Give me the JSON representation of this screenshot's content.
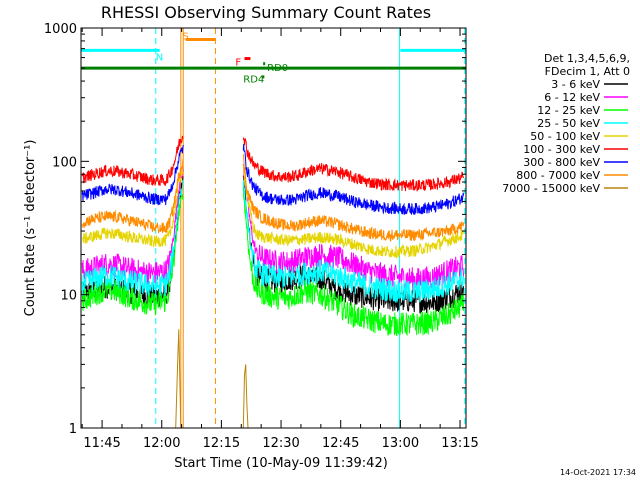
{
  "chart_data": {
    "type": "line",
    "title": "RHESSI Observing Summary Count Rates",
    "xlabel": "Start Time (10-May-09 11:39:42)",
    "ylabel": "Count Rate (s⁻¹ detector⁻¹)",
    "y_scale": "log",
    "ylim": [
      1,
      1000
    ],
    "xlim_minutes": [
      699.7,
      796.5
    ],
    "x_ticks": [
      {
        "t": 705,
        "label": "11:45"
      },
      {
        "t": 720,
        "label": "12:00"
      },
      {
        "t": 735,
        "label": "12:15"
      },
      {
        "t": 750,
        "label": "12:30"
      },
      {
        "t": 765,
        "label": "12:45"
      },
      {
        "t": 780,
        "label": "13:00"
      },
      {
        "t": 795,
        "label": "13:15"
      }
    ],
    "y_ticks": [
      {
        "v": 1,
        "label": "1"
      },
      {
        "v": 10,
        "label": "10"
      },
      {
        "v": 100,
        "label": "100"
      },
      {
        "v": 1000,
        "label": "1000"
      }
    ],
    "legend": {
      "placement": "right",
      "header": [
        "Det 1,3,4,5,6,9,",
        "FDecim 1, Att 0"
      ]
    },
    "series": [
      {
        "name": "3 - 6 keV",
        "color": "#000000",
        "points": [
          [
            700,
            10
          ],
          [
            703,
            11
          ],
          [
            706,
            11.5
          ],
          [
            709,
            11
          ],
          [
            712,
            10.5
          ],
          [
            715,
            10
          ],
          [
            718,
            9.8
          ],
          [
            721,
            10
          ],
          [
            722,
            12
          ],
          [
            723,
            20
          ],
          [
            724.5,
            55
          ],
          [
            725.5,
            75
          ],
          [
            740.5,
            75
          ],
          [
            742,
            30
          ],
          [
            743,
            18
          ],
          [
            744,
            14
          ],
          [
            746,
            13
          ],
          [
            749,
            12.5
          ],
          [
            752,
            13
          ],
          [
            756,
            14
          ],
          [
            760,
            13
          ],
          [
            764,
            11
          ],
          [
            768,
            10
          ],
          [
            772,
            9.5
          ],
          [
            776,
            9
          ],
          [
            780,
            9
          ],
          [
            784,
            9
          ],
          [
            788,
            8.8
          ],
          [
            792,
            9.5
          ],
          [
            796,
            11
          ]
        ]
      },
      {
        "name": "6 - 12 keV",
        "color": "#ff00ff",
        "points": [
          [
            700,
            15
          ],
          [
            703,
            16
          ],
          [
            706,
            17
          ],
          [
            709,
            16.5
          ],
          [
            712,
            15.5
          ],
          [
            715,
            14.8
          ],
          [
            718,
            14.5
          ],
          [
            721,
            15
          ],
          [
            722,
            18
          ],
          [
            723,
            28
          ],
          [
            724.5,
            70
          ],
          [
            725.5,
            90
          ],
          [
            740.5,
            90
          ],
          [
            742,
            40
          ],
          [
            743,
            25
          ],
          [
            744,
            20
          ],
          [
            746,
            18.5
          ],
          [
            749,
            17.5
          ],
          [
            752,
            17.5
          ],
          [
            756,
            19
          ],
          [
            760,
            20
          ],
          [
            764,
            19
          ],
          [
            768,
            17
          ],
          [
            772,
            15
          ],
          [
            776,
            14
          ],
          [
            780,
            13.5
          ],
          [
            784,
            13
          ],
          [
            788,
            13.5
          ],
          [
            792,
            15
          ],
          [
            796,
            16.5
          ]
        ]
      },
      {
        "name": "12 - 25 keV",
        "color": "#00ff00",
        "points": [
          [
            700,
            9
          ],
          [
            703,
            10
          ],
          [
            706,
            11
          ],
          [
            709,
            10.5
          ],
          [
            712,
            9.5
          ],
          [
            715,
            8.8
          ],
          [
            718,
            8.5
          ],
          [
            721,
            9
          ],
          [
            722,
            11
          ],
          [
            723,
            18
          ],
          [
            724.5,
            45
          ],
          [
            725.5,
            60
          ],
          [
            740.5,
            60
          ],
          [
            742,
            20
          ],
          [
            743,
            13
          ],
          [
            744,
            11
          ],
          [
            746,
            10
          ],
          [
            749,
            9.5
          ],
          [
            752,
            9.5
          ],
          [
            756,
            10.5
          ],
          [
            760,
            10
          ],
          [
            764,
            8.5
          ],
          [
            768,
            7
          ],
          [
            772,
            6.5
          ],
          [
            776,
            6
          ],
          [
            780,
            6
          ],
          [
            784,
            6
          ],
          [
            788,
            6.2
          ],
          [
            792,
            7
          ],
          [
            796,
            8.5
          ]
        ]
      },
      {
        "name": "25 - 50 keV",
        "color": "#00ffff",
        "points": [
          [
            700,
            12
          ],
          [
            703,
            13
          ],
          [
            706,
            14
          ],
          [
            709,
            13.5
          ],
          [
            712,
            12.5
          ],
          [
            715,
            12
          ],
          [
            718,
            11.5
          ],
          [
            721,
            12
          ],
          [
            722,
            14
          ],
          [
            723,
            22
          ],
          [
            724.5,
            55
          ],
          [
            725.5,
            70
          ],
          [
            740.5,
            70
          ],
          [
            742,
            28
          ],
          [
            743,
            18
          ],
          [
            744,
            15
          ],
          [
            746,
            14
          ],
          [
            749,
            13.5
          ],
          [
            752,
            13.5
          ],
          [
            756,
            14.5
          ],
          [
            760,
            15
          ],
          [
            764,
            14
          ],
          [
            768,
            12.5
          ],
          [
            772,
            11.5
          ],
          [
            776,
            11
          ],
          [
            780,
            10.5
          ],
          [
            784,
            10.5
          ],
          [
            788,
            11
          ],
          [
            792,
            12
          ],
          [
            796,
            13.5
          ]
        ]
      },
      {
        "name": "50 - 100 keV",
        "color": "#e5d400",
        "points": [
          [
            700,
            26
          ],
          [
            703,
            27.5
          ],
          [
            706,
            29
          ],
          [
            709,
            28.5
          ],
          [
            712,
            27
          ],
          [
            715,
            26
          ],
          [
            718,
            25
          ],
          [
            721,
            25.5
          ],
          [
            722,
            28
          ],
          [
            723,
            38
          ],
          [
            724.5,
            75
          ],
          [
            725.5,
            90
          ],
          [
            740.5,
            90
          ],
          [
            742,
            45
          ],
          [
            743,
            32
          ],
          [
            744,
            28
          ],
          [
            746,
            27
          ],
          [
            749,
            26
          ],
          [
            752,
            25.5
          ],
          [
            756,
            26
          ],
          [
            760,
            27
          ],
          [
            764,
            26
          ],
          [
            768,
            24
          ],
          [
            772,
            22
          ],
          [
            776,
            21
          ],
          [
            780,
            21
          ],
          [
            784,
            21.5
          ],
          [
            788,
            23
          ],
          [
            792,
            25.5
          ],
          [
            796,
            28
          ]
        ]
      },
      {
        "name": "100 - 300 keV",
        "color": "#ff0000",
        "points": [
          [
            700,
            75
          ],
          [
            703,
            80
          ],
          [
            706,
            85
          ],
          [
            709,
            84
          ],
          [
            712,
            80
          ],
          [
            715,
            76
          ],
          [
            718,
            72
          ],
          [
            721,
            72
          ],
          [
            722,
            80
          ],
          [
            723,
            95
          ],
          [
            724.5,
            140
          ],
          [
            725.5,
            160
          ],
          [
            740.5,
            160
          ],
          [
            741.5,
            120
          ],
          [
            743,
            95
          ],
          [
            745,
            85
          ],
          [
            748,
            78
          ],
          [
            751,
            76
          ],
          [
            754,
            78
          ],
          [
            757,
            85
          ],
          [
            760,
            88
          ],
          [
            764,
            84
          ],
          [
            768,
            76
          ],
          [
            772,
            70
          ],
          [
            776,
            67
          ],
          [
            780,
            66
          ],
          [
            784,
            66
          ],
          [
            788,
            67
          ],
          [
            792,
            70
          ],
          [
            796,
            76
          ]
        ]
      },
      {
        "name": "300 - 800 keV",
        "color": "#0000ff",
        "points": [
          [
            700,
            55
          ],
          [
            703,
            58
          ],
          [
            706,
            62
          ],
          [
            709,
            61
          ],
          [
            712,
            58
          ],
          [
            715,
            55
          ],
          [
            718,
            52
          ],
          [
            721,
            52
          ],
          [
            722,
            58
          ],
          [
            723,
            72
          ],
          [
            724.5,
            110
          ],
          [
            725.5,
            130
          ],
          [
            740.5,
            130
          ],
          [
            741.5,
            85
          ],
          [
            743,
            65
          ],
          [
            745,
            56
          ],
          [
            748,
            52
          ],
          [
            751,
            51
          ],
          [
            754,
            52
          ],
          [
            757,
            56
          ],
          [
            760,
            58
          ],
          [
            764,
            55
          ],
          [
            768,
            50
          ],
          [
            772,
            47
          ],
          [
            776,
            45
          ],
          [
            780,
            44
          ],
          [
            784,
            44
          ],
          [
            788,
            45
          ],
          [
            792,
            48
          ],
          [
            796,
            54
          ]
        ]
      },
      {
        "name": "800 - 7000 keV",
        "color": "#ff8c00",
        "points": [
          [
            700,
            35
          ],
          [
            703,
            37
          ],
          [
            706,
            38.5
          ],
          [
            709,
            38
          ],
          [
            712,
            36
          ],
          [
            715,
            34
          ],
          [
            718,
            32
          ],
          [
            721,
            31
          ],
          [
            722,
            35
          ],
          [
            723,
            46
          ],
          [
            724.5,
            85
          ],
          [
            725.5,
            105
          ],
          [
            740.5,
            105
          ],
          [
            741.5,
            60
          ],
          [
            743,
            44
          ],
          [
            745,
            38
          ],
          [
            748,
            35
          ],
          [
            751,
            33
          ],
          [
            754,
            33
          ],
          [
            757,
            35
          ],
          [
            760,
            36
          ],
          [
            764,
            34
          ],
          [
            768,
            31
          ],
          [
            772,
            29
          ],
          [
            776,
            28
          ],
          [
            780,
            28
          ],
          [
            784,
            28
          ],
          [
            788,
            29
          ],
          [
            792,
            30
          ],
          [
            796,
            33
          ]
        ]
      },
      {
        "name": "7000 - 15000 keV",
        "color": "#b8860b",
        "points": [
          [
            723.5,
            1
          ],
          [
            724,
            3
          ],
          [
            724.3,
            5.5
          ],
          [
            724.6,
            2
          ],
          [
            724.8,
            1
          ],
          [
            740.5,
            1
          ],
          [
            740.8,
            2.5
          ],
          [
            741.1,
            3
          ],
          [
            741.4,
            1.5
          ],
          [
            741.7,
            1
          ]
        ]
      }
    ],
    "attenuator_state_line": {
      "color": "#008000",
      "value": 500
    },
    "annotations": [
      {
        "label": "N",
        "color": "#00ffff",
        "t": 718.5,
        "value": 610,
        "from_t": 699.7,
        "to_t": 719.5,
        "line_value": 680
      },
      {
        "label": "S",
        "color": "#ff8c00",
        "t": 725.2,
        "value": 880,
        "from_t": 726,
        "to_t": 733.5,
        "line_value": 820
      },
      {
        "label": "F",
        "color": "#ff0000",
        "t": 738.5,
        "value": 560,
        "from_t": 740.8,
        "to_t": 742.3,
        "line_value": 590
      },
      {
        "label": "RD0",
        "color": "#008000",
        "t": 746.5,
        "value": 510,
        "from_t": 745.5,
        "to_t": 746,
        "line_value": 540
      },
      {
        "label": "RD4",
        "color": "#008000",
        "t": 740.5,
        "value": 418,
        "from_t": 745.2,
        "to_t": 745.8,
        "line_value": 430
      },
      {
        "label": "",
        "color": "#00ffff",
        "t": 0,
        "value": 0,
        "from_t": 780,
        "to_t": 796.5,
        "line_value": 680
      }
    ],
    "vertical_markers": [
      {
        "t": 699.7,
        "color": "#00ffff",
        "style": "solid"
      },
      {
        "t": 718.5,
        "color": "#00ffff",
        "style": "dashed"
      },
      {
        "t": 724.8,
        "color": "#ff8c00",
        "style": "solid"
      },
      {
        "t": 725.4,
        "color": "#ff8c00",
        "style": "solid"
      },
      {
        "t": 733.5,
        "color": "#ff8c00",
        "style": "dashed"
      },
      {
        "t": 779.8,
        "color": "#00ffff",
        "style": "solid"
      },
      {
        "t": 796.2,
        "color": "#00ffff",
        "style": "dashed"
      }
    ],
    "data_gap": {
      "from_t": 725.5,
      "to_t": 740.5
    },
    "timestamp": "14-Oct-2021 17:34"
  }
}
